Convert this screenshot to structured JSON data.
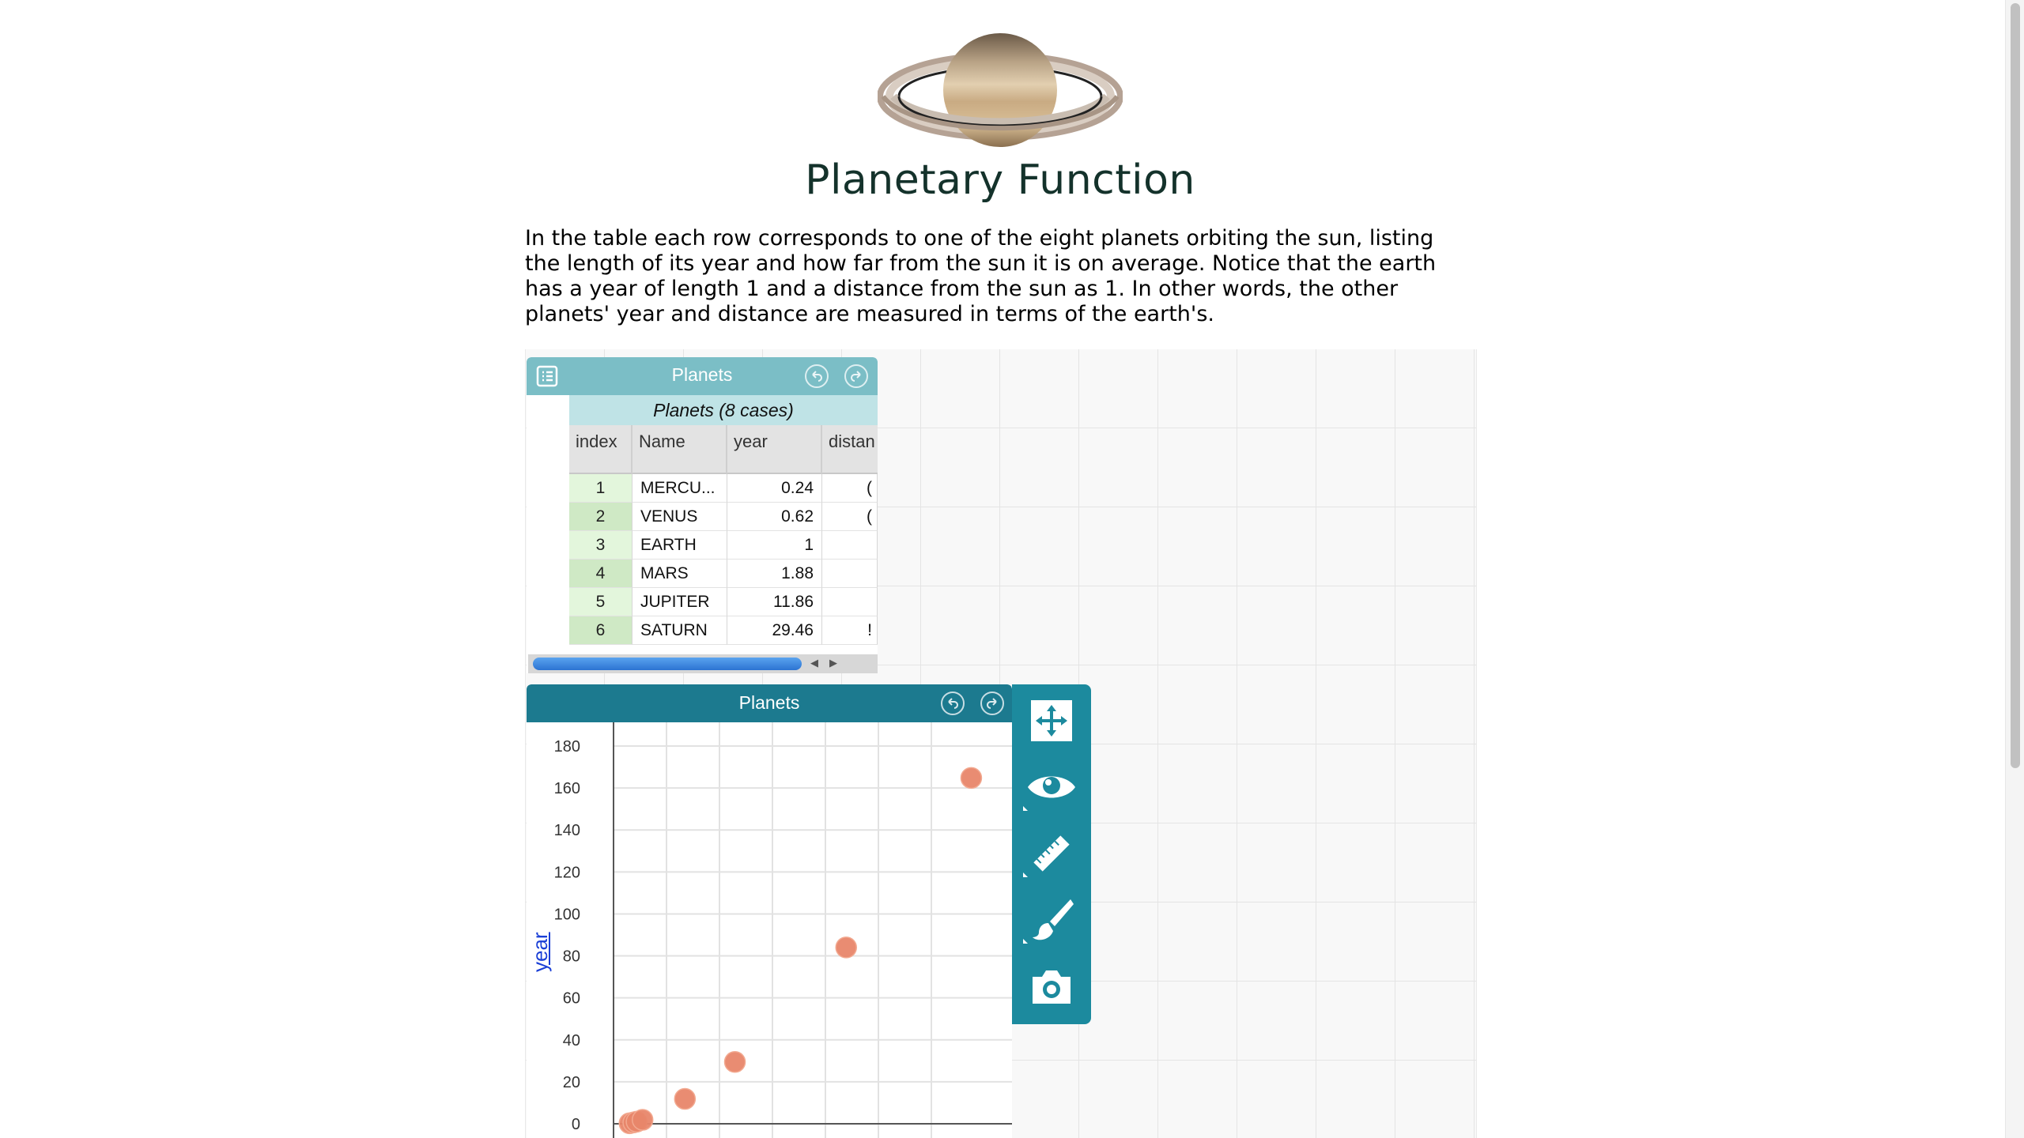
{
  "page": {
    "title": "Planetary Function",
    "intro": "In the table each row corresponds to one of the eight planets orbiting the sun, listing the length of its year and how far from the sun it is on average. Notice that the earth has a year of length 1 and a distance from the sun as 1. In other words, the other planets' year and distance are measured in terms of the earth's."
  },
  "table": {
    "title": "Planets",
    "case_header": "Planets (8 cases)",
    "columns": [
      "index",
      "Name",
      "year",
      "distan"
    ],
    "rows": [
      {
        "index": "1",
        "name": "MERCU...",
        "year": "0.24"
      },
      {
        "index": "2",
        "name": "VENUS",
        "year": "0.62"
      },
      {
        "index": "3",
        "name": "EARTH",
        "year": "1"
      },
      {
        "index": "4",
        "name": "MARS",
        "year": "1.88"
      },
      {
        "index": "5",
        "name": "JUPITER",
        "year": "11.86"
      },
      {
        "index": "6",
        "name": "SATURN",
        "year": "29.46"
      }
    ]
  },
  "graph": {
    "title": "Planets",
    "y_axis_label": "year"
  },
  "chart_data": {
    "type": "scatter",
    "title": "Planets",
    "ylabel": "year",
    "xlabel": "",
    "ylim": [
      0,
      180
    ],
    "yticks": [
      0,
      20,
      40,
      60,
      80,
      100,
      120,
      140,
      160,
      180
    ],
    "grid": true,
    "point_color": "#e8866a",
    "points": [
      {
        "x": 0.39,
        "y": 0.24
      },
      {
        "x": 0.72,
        "y": 0.62
      },
      {
        "x": 1.0,
        "y": 1
      },
      {
        "x": 1.52,
        "y": 1.88
      },
      {
        "x": 5.2,
        "y": 11.86
      },
      {
        "x": 9.54,
        "y": 29.46
      },
      {
        "x": 19.2,
        "y": 84.01
      },
      {
        "x": 30.06,
        "y": 164.8
      }
    ]
  },
  "palette": {
    "items": [
      "move-icon",
      "eye-icon",
      "ruler-icon",
      "brush-icon",
      "camera-icon"
    ]
  },
  "colors": {
    "table_titlebar": "#7bbec6",
    "graph_titlebar": "#1c7a8f",
    "palette": "#1c8a9e",
    "point": "#e8866a",
    "title_text": "#14322b"
  }
}
